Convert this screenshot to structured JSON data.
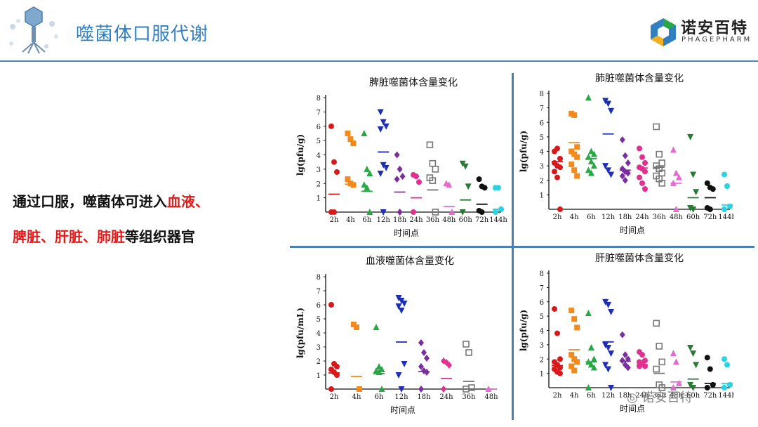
{
  "header": {
    "title": "噬菌体口服代谢",
    "logo_cn": "诺安百特",
    "logo_en": "PHAGEPHARM"
  },
  "body": {
    "line1_prefix": "通过口服，噬菌体可进入",
    "line1_red": "血液、",
    "line2_red": "脾脏、肝脏、肺脏",
    "line2_suffix": "等组织器官"
  },
  "watermark": "诺安百特",
  "colors": {
    "accent": "#2f7fc1",
    "divider": "#4a7fae",
    "highlight": "#e31b1b",
    "series": [
      "#d7191c",
      "#f28a1e",
      "#27a845",
      "#1f2fb4",
      "#7a2f9e",
      "#e0318f",
      "#777777",
      "#e26bd0",
      "#2a7a36",
      "#111111",
      "#29d3e0"
    ]
  },
  "chart_data": [
    {
      "type": "scatter",
      "title": "脾脏噬菌体含量变化",
      "xlabel": "时间点",
      "ylabel": "lg(pfu/g)",
      "ylim": [
        0,
        8
      ],
      "categories": [
        "2h",
        "4h",
        "6h",
        "12h",
        "18h",
        "24h",
        "36h",
        "48h",
        "60h",
        "72h",
        "144h"
      ],
      "series": [
        {
          "category": "2h",
          "marker": "circle",
          "filled": true,
          "points": [
            6.0,
            3.5,
            2.8,
            0,
            0
          ],
          "mean": 1.25
        },
        {
          "category": "4h",
          "marker": "square",
          "filled": true,
          "points": [
            5.5,
            5.1,
            4.8,
            2.3,
            2.0,
            1.9
          ],
          "mean": 1.95
        },
        {
          "category": "6h",
          "marker": "triangle",
          "filled": true,
          "points": [
            5.5,
            3.0,
            2.7,
            1.9,
            1.7,
            0
          ],
          "mean": 1.45
        },
        {
          "category": "12h",
          "marker": "triangle-down",
          "filled": true,
          "points": [
            7.0,
            6.3,
            6.0,
            5.8,
            3.3,
            3.1,
            2.7,
            0
          ],
          "mean": 4.2
        },
        {
          "category": "18h",
          "marker": "diamond",
          "filled": true,
          "points": [
            4.0,
            3.0,
            2.5,
            2.3,
            0
          ],
          "mean": 1.4
        },
        {
          "category": "24h",
          "marker": "circle",
          "filled": true,
          "points": [
            2.6,
            2.5,
            2.1,
            0
          ],
          "mean": 1.0
        },
        {
          "category": "36h",
          "marker": "square",
          "filled": false,
          "points": [
            4.7,
            3.4,
            3.0,
            2.4,
            2.2,
            0
          ],
          "mean": 1.55
        },
        {
          "category": "48h",
          "marker": "triangle",
          "filled": true,
          "points": [
            2.0,
            1.9,
            0
          ],
          "mean": 0.4
        },
        {
          "category": "60h",
          "marker": "triangle-down",
          "filled": true,
          "points": [
            3.4,
            3.2,
            1.8,
            0
          ],
          "mean": 0.85
        },
        {
          "category": "72h",
          "marker": "circle",
          "filled": true,
          "points": [
            2.3,
            1.8,
            1.7,
            0.1,
            0
          ],
          "mean": 0.55
        },
        {
          "category": "144h",
          "marker": "circle",
          "filled": true,
          "points": [
            1.7,
            1.7,
            0.2,
            0
          ],
          "mean": 0.2
        }
      ]
    },
    {
      "type": "scatter",
      "title": "肺脏噬菌体含量变化",
      "xlabel": "时间点",
      "ylabel": "lg(pfu/g)",
      "ylim": [
        0,
        8
      ],
      "categories": [
        "2h",
        "4h",
        "6h",
        "12h",
        "18h",
        "24h",
        "36h",
        "48h",
        "60h",
        "72h",
        "144h"
      ],
      "series": [
        {
          "category": "2h",
          "marker": "circle",
          "filled": true,
          "points": [
            4.0,
            4.2,
            3.5,
            3.2,
            3.0,
            2.9,
            2.6,
            2.2,
            0
          ],
          "mean": 3.3
        },
        {
          "category": "4h",
          "marker": "square",
          "filled": true,
          "points": [
            6.6,
            6.5,
            4.3,
            4.0,
            3.8,
            3.6,
            3.1,
            2.7,
            2.3
          ],
          "mean": 4.6
        },
        {
          "category": "6h",
          "marker": "triangle",
          "filled": true,
          "points": [
            7.7,
            4.0,
            3.8,
            3.6,
            3.3,
            3.0,
            2.7,
            2.5
          ],
          "mean": 3.5
        },
        {
          "category": "12h",
          "marker": "triangle-down",
          "filled": true,
          "points": [
            7.5,
            7.3,
            6.8,
            3.0,
            2.7,
            2.4
          ],
          "mean": 5.2
        },
        {
          "category": "18h",
          "marker": "diamond",
          "filled": true,
          "points": [
            4.8,
            3.7,
            3.2,
            2.8,
            2.6,
            2.5,
            2.3,
            2.0
          ],
          "mean": 2.7
        },
        {
          "category": "24h",
          "marker": "circle",
          "filled": true,
          "points": [
            4.2,
            3.6,
            3.2,
            2.9,
            2.8,
            2.6,
            2.2,
            1.8,
            1.4
          ],
          "mean": 2.85
        },
        {
          "category": "36h",
          "marker": "square",
          "filled": false,
          "points": [
            5.7,
            3.8,
            3.2,
            3.0,
            2.8,
            2.5,
            2.3,
            2.1,
            1.8
          ],
          "mean": 2.9
        },
        {
          "category": "48h",
          "marker": "triangle",
          "filled": true,
          "points": [
            4.1,
            2.5,
            2.2,
            1.8,
            0
          ],
          "mean": 1.8
        },
        {
          "category": "60h",
          "marker": "triangle-down",
          "filled": true,
          "points": [
            5.0,
            2.4,
            1.2,
            0.1,
            0
          ],
          "mean": 0.8
        },
        {
          "category": "72h",
          "marker": "circle",
          "filled": true,
          "points": [
            1.8,
            1.5,
            1.4,
            0.1,
            0
          ],
          "mean": 0.8
        },
        {
          "category": "144h",
          "marker": "circle",
          "filled": true,
          "points": [
            2.4,
            1.6,
            0.2,
            0
          ],
          "mean": 0.3
        }
      ]
    },
    {
      "type": "scatter",
      "title": "血液噬菌体含量变化",
      "xlabel": "时间点",
      "ylabel": "lg(pfu/mL)",
      "ylim": [
        0,
        8
      ],
      "categories": [
        "2h",
        "4h",
        "6h",
        "12h",
        "18h",
        "24h",
        "36h",
        "48h"
      ],
      "series": [
        {
          "category": "2h",
          "marker": "circle",
          "filled": true,
          "points": [
            6.0,
            1.8,
            1.6,
            1.4,
            1.2,
            1.0,
            0
          ],
          "mean": 1.15
        },
        {
          "category": "4h",
          "marker": "square",
          "filled": true,
          "points": [
            4.6,
            4.4,
            0
          ],
          "mean": 0.9
        },
        {
          "category": "6h",
          "marker": "triangle",
          "filled": true,
          "points": [
            4.4,
            1.6,
            1.4,
            1.3,
            1.2,
            0
          ],
          "mean": 1.1
        },
        {
          "category": "12h",
          "marker": "triangle-down",
          "filled": true,
          "points": [
            6.5,
            6.3,
            6.1,
            5.9,
            5.6,
            1.8,
            1.0,
            0
          ],
          "mean": 3.35
        },
        {
          "category": "18h",
          "marker": "diamond",
          "filled": true,
          "points": [
            3.3,
            2.6,
            2.2,
            1.6,
            1.3,
            1.2,
            0
          ],
          "mean": 1.25
        },
        {
          "category": "24h",
          "marker": "diamond",
          "filled": true,
          "points": [
            2.0,
            1.9,
            1.7,
            0
          ],
          "mean": 0.75
        },
        {
          "category": "36h",
          "marker": "square",
          "filled": false,
          "points": [
            3.2,
            2.6,
            0.1,
            0
          ],
          "mean": 0.55
        },
        {
          "category": "48h",
          "marker": "triangle",
          "filled": true,
          "points": [
            0
          ],
          "mean": 0
        }
      ]
    },
    {
      "type": "scatter",
      "title": "肝脏噬菌体含量变化",
      "xlabel": "时间点",
      "ylabel": "lg(pfu/g)",
      "ylim": [
        0,
        8
      ],
      "categories": [
        "2h",
        "4h",
        "6h",
        "12h",
        "18h",
        "24h",
        "36h",
        "48h",
        "60h",
        "72h",
        "144h"
      ],
      "series": [
        {
          "category": "2h",
          "marker": "circle",
          "filled": true,
          "points": [
            5.5,
            3.8,
            2.0,
            1.8,
            1.6,
            1.4,
            1.3,
            1.1,
            1.0
          ],
          "mean": 1.55
        },
        {
          "category": "4h",
          "marker": "square",
          "filled": true,
          "points": [
            5.4,
            4.8,
            4.2,
            2.3,
            2.0,
            1.8,
            1.5,
            1.2
          ],
          "mean": 2.65
        },
        {
          "category": "6h",
          "marker": "triangle",
          "filled": true,
          "points": [
            5.2,
            2.8,
            2.0,
            1.8,
            1.6,
            1.4,
            0
          ],
          "mean": 1.8
        },
        {
          "category": "12h",
          "marker": "triangle-down",
          "filled": true,
          "points": [
            6.0,
            5.8,
            5.3,
            3.0,
            2.8,
            2.4,
            1.6,
            1.3,
            0
          ],
          "mean": 3.2
        },
        {
          "category": "18h",
          "marker": "diamond",
          "filled": true,
          "points": [
            3.7,
            2.3,
            2.0,
            1.9,
            1.6,
            1.4
          ],
          "mean": 1.85
        },
        {
          "category": "24h",
          "marker": "circle",
          "filled": true,
          "points": [
            2.5,
            2.3,
            1.9,
            1.8,
            1.7,
            1.5,
            1.5
          ],
          "mean": 1.6
        },
        {
          "category": "36h",
          "marker": "square",
          "filled": false,
          "points": [
            4.5,
            2.9,
            1.8,
            1.3,
            0.2,
            0
          ],
          "mean": 1.0
        },
        {
          "category": "48h",
          "marker": "triangle",
          "filled": true,
          "points": [
            2.4,
            1.8,
            0.3,
            0
          ],
          "mean": 0.4
        },
        {
          "category": "60h",
          "marker": "triangle-down",
          "filled": true,
          "points": [
            2.8,
            2.4,
            1.6,
            0.2,
            0
          ],
          "mean": 0.6
        },
        {
          "category": "72h",
          "marker": "circle",
          "filled": true,
          "points": [
            2.1,
            1.3,
            0.2,
            0
          ],
          "mean": 0.3
        },
        {
          "category": "144h",
          "marker": "circle",
          "filled": true,
          "points": [
            2.0,
            1.6,
            0.2,
            0
          ],
          "mean": 0.3
        }
      ]
    }
  ]
}
